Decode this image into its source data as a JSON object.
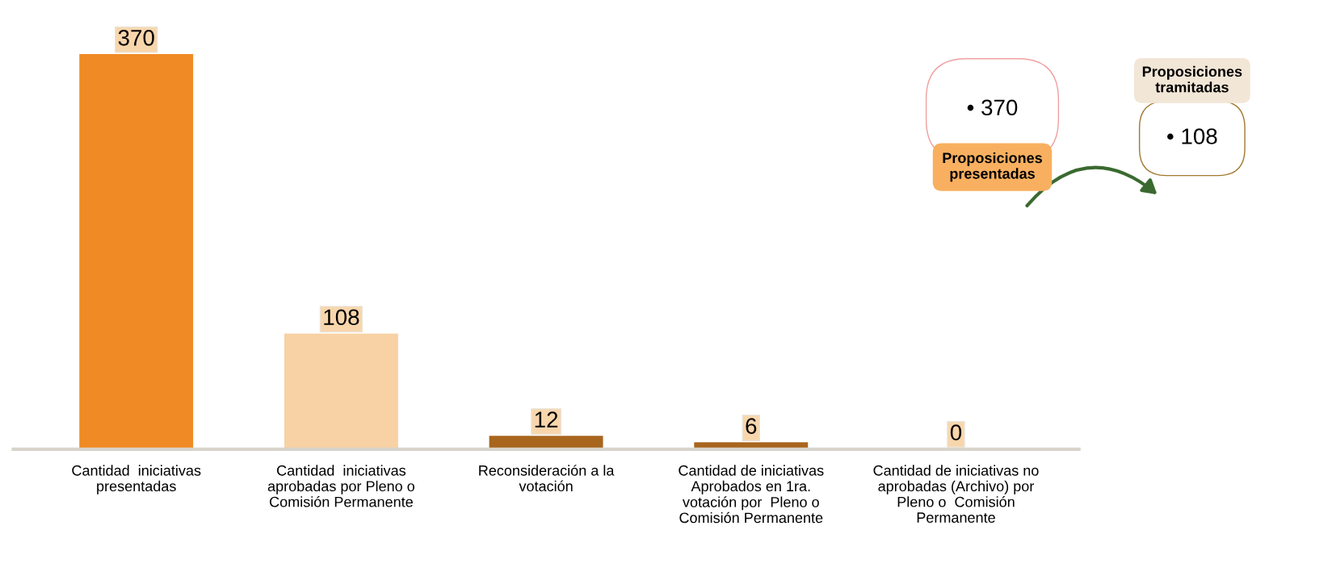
{
  "chart_data": {
    "type": "bar",
    "categories": [
      "Cantidad  iniciativas\npresentadas",
      "Cantidad  iniciativas\naprobadas por Pleno o\nComisión Permanente",
      "Reconsideración a la\nvotación",
      "Cantidad de iniciativas\nAprobados en 1ra.\nvotación por  Pleno o\nComisión Permanente",
      "Cantidad de iniciativas no\naprobadas (Archivo) por\nPleno o  Comisión\nPermanente"
    ],
    "values": [
      370,
      108,
      12,
      6,
      0
    ],
    "colors": [
      "#f08a24",
      "#f8d2a4",
      "#a8651e",
      "#a8651e",
      "#a8651e"
    ],
    "data_labels": true,
    "grid": false,
    "legend": false,
    "annotations": [
      "• 370",
      "Proposiciones presentadas",
      "Proposiciones tramitadas",
      "• 108"
    ]
  }
}
